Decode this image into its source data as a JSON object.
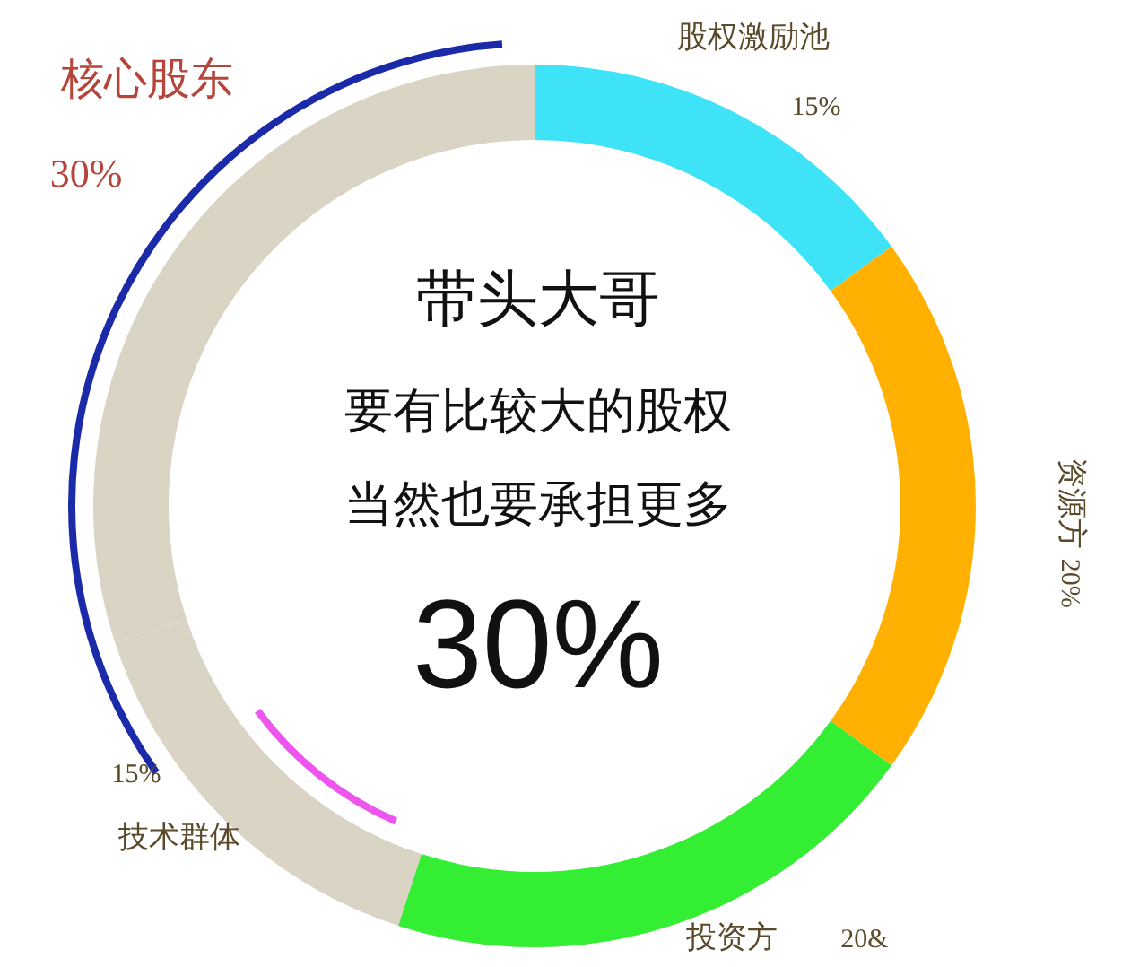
{
  "chart_data": {
    "type": "donut",
    "title": "带头大哥",
    "categories": [
      "股权激励池",
      "资源方",
      "投资方",
      "技术群体",
      "核心股东"
    ],
    "values": [
      15,
      20,
      20,
      15,
      30
    ],
    "value_labels": [
      "15%",
      "20%",
      "20&",
      "15%",
      "30%"
    ],
    "colors": [
      "#3fe3f7",
      "#ffb000",
      "#33ee33",
      "#d9d4c4",
      "#d9d4c4"
    ],
    "annotations": [
      "要有比较大的股权",
      "当然也要承担更多",
      "30%"
    ]
  }
}
